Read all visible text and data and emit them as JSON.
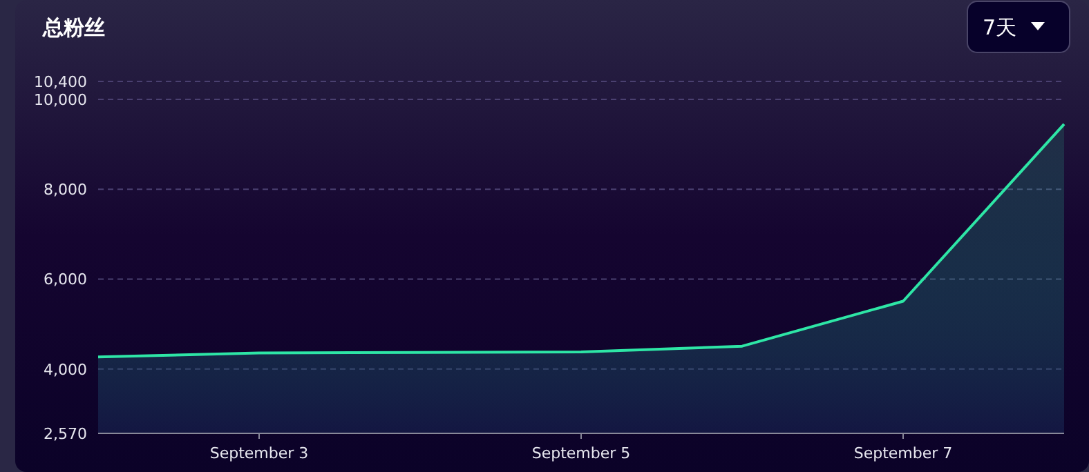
{
  "chart_data": {
    "type": "area",
    "title": "总粉丝",
    "annotations": [
      "7天"
    ],
    "x": [
      "--09-02",
      "--09-03",
      "--09-04",
      "--09-05",
      "--09-06",
      "--09-07",
      "--09-08"
    ],
    "series": [
      {
        "color": "#2ee6a6",
        "values": [
          4270,
          4360,
          4370,
          4380,
          4510,
          5510,
          9450
        ]
      }
    ],
    "xlim": [
      "--09-02",
      "--09-08"
    ],
    "xticks": [
      {
        "value": "--09-03",
        "label": "September 3"
      },
      {
        "value": "--09-05",
        "label": "September 5"
      },
      {
        "value": "--09-07",
        "label": "September 7"
      }
    ],
    "ylim": [
      2570,
      10400
    ],
    "yticks": [
      {
        "value": 2570,
        "label": "2,570"
      },
      {
        "value": 4000,
        "label": "4,000"
      },
      {
        "value": 6000,
        "label": "6,000"
      },
      {
        "value": 8000,
        "label": "8,000"
      },
      {
        "value": 10000,
        "label": "10,000"
      },
      {
        "value": 10400,
        "label": "10,400"
      }
    ],
    "grid": "y",
    "marker": "none",
    "line_style": "solid"
  }
}
